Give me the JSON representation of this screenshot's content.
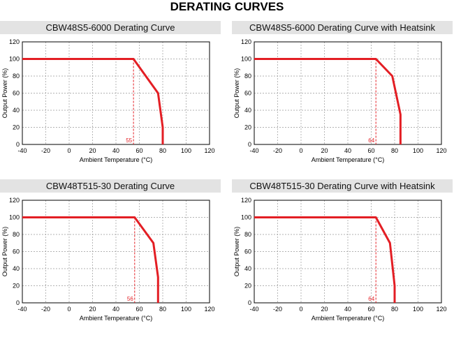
{
  "page": {
    "title": "DERATING CURVES"
  },
  "chart_data": [
    {
      "type": "line",
      "title": "CBW48S5-6000 Derating Curve",
      "xlabel": "Ambient Temperature (°C)",
      "ylabel": "Output Power (%)",
      "xlim": [
        -40,
        120
      ],
      "ylim": [
        0,
        120
      ],
      "xticks": [
        -40,
        -20,
        0,
        20,
        40,
        60,
        80,
        100,
        120
      ],
      "yticks": [
        0,
        20,
        40,
        60,
        80,
        100,
        120
      ],
      "grid": "dashed",
      "series": [
        {
          "x": [
            -40,
            55,
            76,
            80,
            80
          ],
          "y": [
            100,
            100,
            60,
            20,
            0
          ]
        }
      ],
      "marker": {
        "x": 55,
        "label": "55"
      }
    },
    {
      "type": "line",
      "title": "CBW48S5-6000 Derating Curve with Heatsink",
      "xlabel": "Ambient Temperature (°C)",
      "ylabel": "Output Power (%)",
      "xlim": [
        -40,
        120
      ],
      "ylim": [
        0,
        120
      ],
      "xticks": [
        -40,
        -20,
        0,
        20,
        40,
        60,
        80,
        100,
        120
      ],
      "yticks": [
        0,
        20,
        40,
        60,
        80,
        100,
        120
      ],
      "grid": "dashed",
      "series": [
        {
          "x": [
            -40,
            64,
            78,
            85,
            85
          ],
          "y": [
            100,
            100,
            80,
            35,
            0
          ]
        }
      ],
      "marker": {
        "x": 64,
        "label": "64"
      }
    },
    {
      "type": "line",
      "title": "CBW48T515-30 Derating Curve",
      "xlabel": "Ambient Temperature (°C)",
      "ylabel": "Output Power (%)",
      "xlim": [
        -40,
        120
      ],
      "ylim": [
        0,
        120
      ],
      "xticks": [
        -40,
        -20,
        0,
        20,
        40,
        60,
        80,
        100,
        120
      ],
      "yticks": [
        0,
        20,
        40,
        60,
        80,
        100,
        120
      ],
      "grid": "dashed",
      "series": [
        {
          "x": [
            -40,
            56,
            72,
            76,
            76
          ],
          "y": [
            100,
            100,
            70,
            30,
            0
          ]
        }
      ],
      "marker": {
        "x": 56,
        "label": "56"
      }
    },
    {
      "type": "line",
      "title": "CBW48T515-30 Derating Curve with Heatsink",
      "xlabel": "Ambient Temperature (°C)",
      "ylabel": "Output Power (%)",
      "xlim": [
        -40,
        120
      ],
      "ylim": [
        0,
        120
      ],
      "xticks": [
        -40,
        -20,
        0,
        20,
        40,
        60,
        80,
        100,
        120
      ],
      "yticks": [
        0,
        20,
        40,
        60,
        80,
        100,
        120
      ],
      "grid": "dashed",
      "series": [
        {
          "x": [
            -40,
            64,
            76,
            80,
            80
          ],
          "y": [
            100,
            100,
            70,
            20,
            0
          ]
        }
      ],
      "marker": {
        "x": 64,
        "label": "64"
      }
    }
  ]
}
